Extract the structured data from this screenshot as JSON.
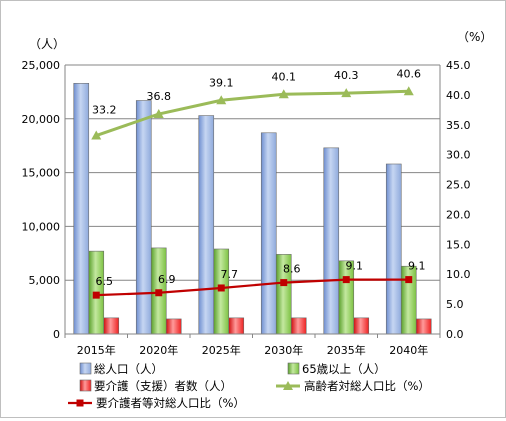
{
  "chart_data": {
    "type": "bar",
    "categories": [
      "2015年",
      "2020年",
      "2025年",
      "2030年",
      "2035年",
      "2040年"
    ],
    "left_axis": {
      "unit_label": "（人）",
      "range": [
        0,
        25000
      ],
      "ticks": [
        "0",
        "5,000",
        "10,000",
        "15,000",
        "20,000",
        "25,000"
      ]
    },
    "right_axis": {
      "unit_label": "（%）",
      "range": [
        0,
        45
      ],
      "ticks": [
        "0.0",
        "5.0",
        "10.0",
        "15.0",
        "20.0",
        "25.0",
        "30.0",
        "35.0",
        "40.0",
        "45.0"
      ]
    },
    "grid": true,
    "legend_position": "bottom",
    "series": [
      {
        "name": "総人口（人）",
        "kind": "bar",
        "axis": "left",
        "color": "#8faadc",
        "values": [
          23300,
          21700,
          20300,
          18700,
          17300,
          15800
        ]
      },
      {
        "name": "65歳以上（人）",
        "kind": "bar",
        "axis": "left",
        "color": "#92d050",
        "values": [
          7700,
          8000,
          7900,
          7400,
          6800,
          6300
        ]
      },
      {
        "name": "要介護（支援）者数（人）",
        "kind": "bar",
        "axis": "left",
        "color": "#ff3333",
        "values": [
          1500,
          1400,
          1500,
          1500,
          1500,
          1400
        ]
      },
      {
        "name": "高齢者対総人口比（%）",
        "kind": "line",
        "axis": "right",
        "color": "#9bbb59",
        "values": [
          33.2,
          36.8,
          39.1,
          40.1,
          40.3,
          40.6
        ],
        "labels": [
          "33.2",
          "36.8",
          "39.1",
          "40.1",
          "40.3",
          "40.6"
        ]
      },
      {
        "name": "要介護者等対総人口比（%）",
        "kind": "line",
        "axis": "right",
        "color": "#c00000",
        "values": [
          6.5,
          6.9,
          7.7,
          8.6,
          9.1,
          9.1
        ],
        "labels": [
          "6.5",
          "6.9",
          "7.7",
          "8.6",
          "9.1",
          "9.1"
        ]
      }
    ]
  }
}
